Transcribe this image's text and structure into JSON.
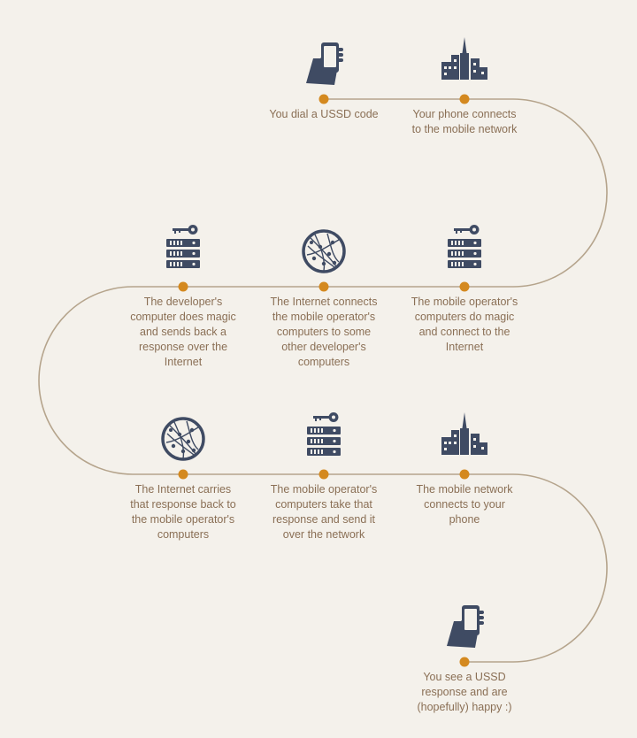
{
  "steps": [
    {
      "icon": "phone-hand-icon",
      "lines": [
        "You dial a USSD code"
      ]
    },
    {
      "icon": "city-tower-icon",
      "lines": [
        "Your phone connects",
        "to the mobile network"
      ]
    },
    {
      "icon": "server-key-icon",
      "lines": [
        "The mobile operator's",
        "computers do magic",
        "and connect to the",
        "Internet"
      ]
    },
    {
      "icon": "globe-network-icon",
      "lines": [
        "The Internet connects",
        "the mobile operator's",
        "computers to some",
        "other developer's",
        "computers"
      ]
    },
    {
      "icon": "server-key-icon",
      "lines": [
        "The developer's",
        "computer does magic",
        "and sends back a",
        "response over the",
        "Internet"
      ]
    },
    {
      "icon": "globe-network-icon",
      "lines": [
        "The Internet carries",
        "that response back to",
        "the mobile operator's",
        "computers"
      ]
    },
    {
      "icon": "server-key-icon",
      "lines": [
        "The mobile operator's",
        "computers take that",
        "response and send it",
        "over the network"
      ]
    },
    {
      "icon": "city-tower-icon",
      "lines": [
        "The mobile network",
        "connects to your",
        "phone"
      ]
    },
    {
      "icon": "phone-hand-icon",
      "lines": [
        "You see a USSD",
        "response and are",
        "(hopefully) happy :)"
      ]
    }
  ],
  "colors": {
    "background": "#f4f1eb",
    "path": "#b5a48c",
    "dot": "#d4891f",
    "icon": "#3f4b63",
    "text": "#8a6f55"
  }
}
